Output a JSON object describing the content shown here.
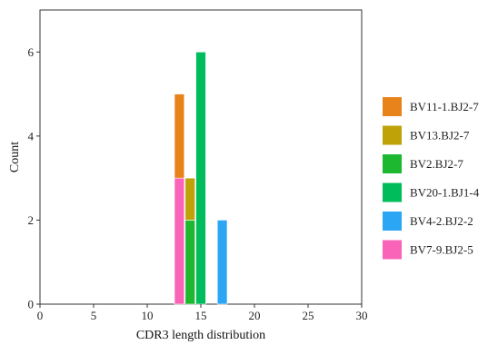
{
  "chart_data": {
    "type": "bar",
    "stacked": true,
    "xlabel": "CDR3 length distribution",
    "ylabel": "Count",
    "xlim": [
      0,
      30
    ],
    "ylim": [
      0,
      7
    ],
    "xticks": [
      0,
      5,
      10,
      15,
      20,
      25,
      30
    ],
    "yticks": [
      0,
      2,
      4,
      6
    ],
    "grid": false,
    "legend_position": "right",
    "series": [
      {
        "name": "BV11-1.BJ2-7",
        "color": "#E8821A",
        "points": [
          {
            "x": 13,
            "y": 2
          }
        ]
      },
      {
        "name": "BV13.BJ2-7",
        "color": "#BFA208",
        "points": [
          {
            "x": 14,
            "y": 1
          }
        ]
      },
      {
        "name": "BV2.BJ2-7",
        "color": "#1DB82F",
        "points": [
          {
            "x": 14,
            "y": 2
          }
        ]
      },
      {
        "name": "BV20-1.BJ1-4",
        "color": "#00BC5A",
        "points": [
          {
            "x": 15,
            "y": 6
          }
        ]
      },
      {
        "name": "BV4-2.BJ2-2",
        "color": "#2AA6F5",
        "points": [
          {
            "x": 17,
            "y": 2
          }
        ]
      },
      {
        "name": "BV7-9.BJ2-5",
        "color": "#F964B8",
        "points": [
          {
            "x": 13,
            "y": 3
          }
        ]
      }
    ],
    "stack_order": [
      "BV7-9.BJ2-5",
      "BV2.BJ2-7",
      "BV13.BJ2-7",
      "BV11-1.BJ2-7",
      "BV20-1.BJ1-4",
      "BV4-2.BJ2-2"
    ]
  }
}
